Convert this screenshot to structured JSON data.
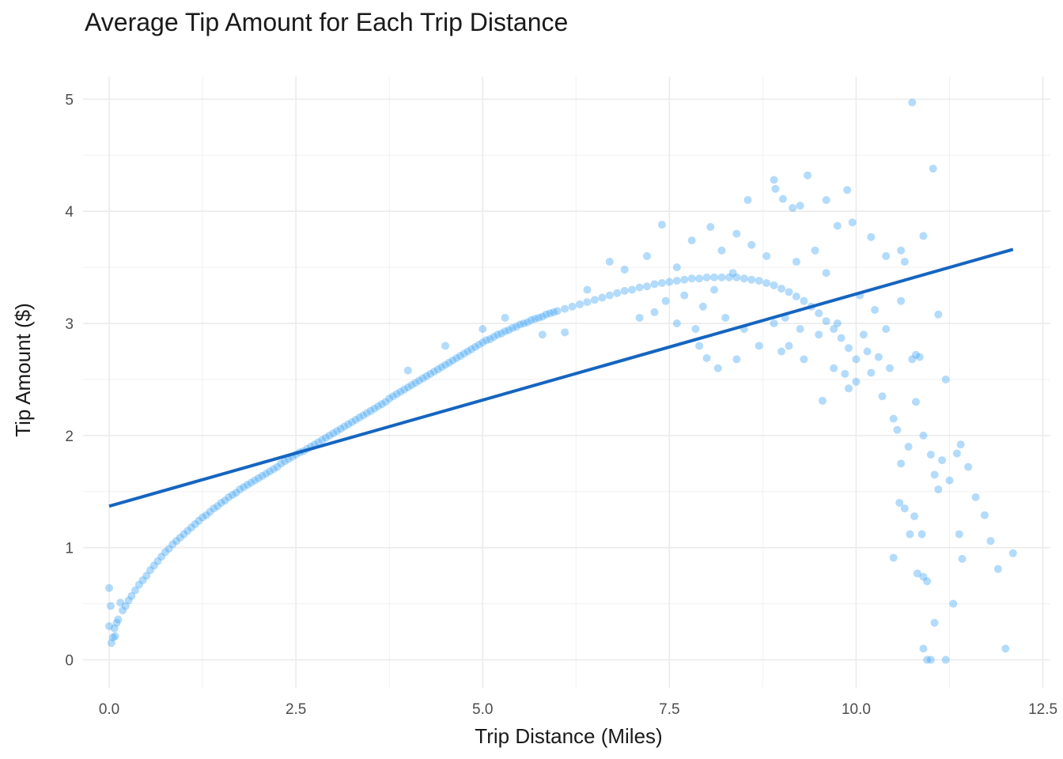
{
  "chart_data": {
    "type": "scatter",
    "title": "Average Tip Amount for Each Trip Distance",
    "xlabel": "Trip Distance (Miles)",
    "ylabel": "Tip Amount ($)",
    "xlim": [
      -0.35,
      12.6
    ],
    "ylim": [
      -0.25,
      5.2
    ],
    "x_ticks": [
      0.0,
      2.5,
      5.0,
      7.5,
      10.0,
      12.5
    ],
    "x_tick_labels": [
      "0.0",
      "2.5",
      "5.0",
      "7.5",
      "10.0",
      "12.5"
    ],
    "y_ticks": [
      0,
      1,
      2,
      3,
      4,
      5
    ],
    "y_tick_labels": [
      "0",
      "1",
      "2",
      "3",
      "4",
      "5"
    ],
    "grid": true,
    "legend": "none",
    "colors": {
      "points": "#42a5f5",
      "trend_line": "#1565c0"
    },
    "trend_line": {
      "type": "linear",
      "x": [
        0.0,
        12.1
      ],
      "y": [
        1.37,
        3.66
      ]
    },
    "series": [
      {
        "points": [
          [
            0.0,
            0.64
          ],
          [
            0.0,
            0.3
          ],
          [
            0.02,
            0.48
          ],
          [
            0.03,
            0.15
          ],
          [
            0.05,
            0.2
          ],
          [
            0.07,
            0.28
          ],
          [
            0.08,
            0.21
          ],
          [
            0.1,
            0.33
          ],
          [
            0.12,
            0.36
          ],
          [
            0.15,
            0.51
          ],
          [
            0.18,
            0.44
          ],
          [
            0.22,
            0.48
          ],
          [
            0.26,
            0.53
          ],
          [
            0.3,
            0.57
          ],
          [
            0.35,
            0.62
          ],
          [
            0.4,
            0.67
          ],
          [
            0.45,
            0.71
          ],
          [
            0.5,
            0.75
          ],
          [
            0.55,
            0.8
          ],
          [
            0.6,
            0.84
          ],
          [
            0.65,
            0.88
          ],
          [
            0.7,
            0.92
          ],
          [
            0.75,
            0.96
          ],
          [
            0.8,
            0.99
          ],
          [
            0.85,
            1.03
          ],
          [
            0.9,
            1.06
          ],
          [
            0.95,
            1.09
          ],
          [
            1.0,
            1.12
          ],
          [
            1.05,
            1.15
          ],
          [
            1.1,
            1.18
          ],
          [
            1.15,
            1.21
          ],
          [
            1.2,
            1.24
          ],
          [
            1.25,
            1.27
          ],
          [
            1.3,
            1.29
          ],
          [
            1.35,
            1.32
          ],
          [
            1.4,
            1.35
          ],
          [
            1.45,
            1.37
          ],
          [
            1.5,
            1.4
          ],
          [
            1.55,
            1.42
          ],
          [
            1.6,
            1.45
          ],
          [
            1.65,
            1.47
          ],
          [
            1.7,
            1.49
          ],
          [
            1.75,
            1.52
          ],
          [
            1.8,
            1.54
          ],
          [
            1.85,
            1.56
          ],
          [
            1.9,
            1.58
          ],
          [
            1.95,
            1.6
          ],
          [
            2.0,
            1.62
          ],
          [
            2.05,
            1.64
          ],
          [
            2.1,
            1.66
          ],
          [
            2.15,
            1.68
          ],
          [
            2.2,
            1.7
          ],
          [
            2.25,
            1.72
          ],
          [
            2.3,
            1.75
          ],
          [
            2.35,
            1.77
          ],
          [
            2.4,
            1.79
          ],
          [
            2.45,
            1.81
          ],
          [
            2.5,
            1.83
          ],
          [
            2.55,
            1.85
          ],
          [
            2.6,
            1.86
          ],
          [
            2.65,
            1.88
          ],
          [
            2.7,
            1.9
          ],
          [
            2.75,
            1.92
          ],
          [
            2.8,
            1.94
          ],
          [
            2.85,
            1.96
          ],
          [
            2.9,
            1.98
          ],
          [
            2.95,
            2.0
          ],
          [
            3.0,
            2.02
          ],
          [
            3.05,
            2.04
          ],
          [
            3.1,
            2.06
          ],
          [
            3.15,
            2.08
          ],
          [
            3.2,
            2.1
          ],
          [
            3.25,
            2.12
          ],
          [
            3.3,
            2.14
          ],
          [
            3.35,
            2.16
          ],
          [
            3.4,
            2.18
          ],
          [
            3.45,
            2.2
          ],
          [
            3.5,
            2.22
          ],
          [
            3.55,
            2.24
          ],
          [
            3.6,
            2.26
          ],
          [
            3.65,
            2.28
          ],
          [
            3.7,
            2.3
          ],
          [
            3.75,
            2.33
          ],
          [
            3.8,
            2.35
          ],
          [
            3.85,
            2.37
          ],
          [
            3.9,
            2.39
          ],
          [
            3.95,
            2.41
          ],
          [
            4.0,
            2.43
          ],
          [
            4.05,
            2.45
          ],
          [
            4.1,
            2.47
          ],
          [
            4.15,
            2.49
          ],
          [
            4.2,
            2.51
          ],
          [
            4.25,
            2.53
          ],
          [
            4.3,
            2.55
          ],
          [
            4.35,
            2.57
          ],
          [
            4.4,
            2.59
          ],
          [
            4.45,
            2.61
          ],
          [
            4.5,
            2.63
          ],
          [
            4.55,
            2.65
          ],
          [
            4.6,
            2.67
          ],
          [
            4.65,
            2.69
          ],
          [
            4.7,
            2.71
          ],
          [
            4.75,
            2.73
          ],
          [
            4.8,
            2.75
          ],
          [
            4.85,
            2.77
          ],
          [
            4.9,
            2.79
          ],
          [
            4.95,
            2.81
          ],
          [
            5.0,
            2.83
          ],
          [
            5.05,
            2.85
          ],
          [
            5.1,
            2.86
          ],
          [
            5.15,
            2.88
          ],
          [
            5.2,
            2.9
          ],
          [
            5.25,
            2.91
          ],
          [
            5.3,
            2.93
          ],
          [
            5.35,
            2.94
          ],
          [
            5.4,
            2.96
          ],
          [
            5.45,
            2.97
          ],
          [
            5.5,
            2.99
          ],
          [
            5.55,
            3.0
          ],
          [
            5.6,
            3.01
          ],
          [
            5.65,
            3.03
          ],
          [
            5.7,
            3.04
          ],
          [
            5.75,
            3.05
          ],
          [
            5.8,
            3.06
          ],
          [
            5.85,
            3.08
          ],
          [
            5.9,
            3.09
          ],
          [
            5.95,
            3.1
          ],
          [
            6.0,
            3.11
          ],
          [
            6.1,
            3.13
          ],
          [
            6.2,
            3.15
          ],
          [
            6.3,
            3.17
          ],
          [
            6.4,
            3.19
          ],
          [
            6.5,
            3.21
          ],
          [
            6.6,
            3.23
          ],
          [
            6.7,
            3.25
          ],
          [
            6.8,
            3.27
          ],
          [
            6.9,
            3.29
          ],
          [
            7.0,
            3.3
          ],
          [
            7.1,
            3.32
          ],
          [
            7.2,
            3.33
          ],
          [
            7.3,
            3.35
          ],
          [
            7.4,
            3.36
          ],
          [
            7.5,
            3.37
          ],
          [
            7.6,
            3.38
          ],
          [
            7.7,
            3.39
          ],
          [
            7.8,
            3.4
          ],
          [
            7.9,
            3.4
          ],
          [
            8.0,
            3.41
          ],
          [
            8.1,
            3.41
          ],
          [
            8.2,
            3.41
          ],
          [
            8.3,
            3.41
          ],
          [
            8.4,
            3.41
          ],
          [
            8.5,
            3.4
          ],
          [
            8.6,
            3.39
          ],
          [
            8.7,
            3.38
          ],
          [
            8.8,
            3.36
          ],
          [
            8.9,
            3.34
          ],
          [
            9.0,
            3.31
          ],
          [
            9.1,
            3.28
          ],
          [
            9.2,
            3.24
          ],
          [
            9.3,
            3.2
          ],
          [
            9.4,
            3.15
          ],
          [
            9.5,
            3.09
          ],
          [
            9.6,
            3.02
          ],
          [
            9.7,
            2.95
          ],
          [
            9.8,
            2.87
          ],
          [
            9.9,
            2.78
          ],
          [
            10.0,
            2.68
          ],
          [
            4.0,
            2.58
          ],
          [
            4.5,
            2.8
          ],
          [
            5.0,
            2.95
          ],
          [
            5.3,
            3.05
          ],
          [
            5.8,
            2.9
          ],
          [
            6.1,
            2.92
          ],
          [
            6.4,
            3.3
          ],
          [
            6.7,
            3.55
          ],
          [
            6.9,
            3.48
          ],
          [
            7.2,
            3.6
          ],
          [
            7.4,
            3.88
          ],
          [
            7.6,
            3.5
          ],
          [
            7.8,
            3.74
          ],
          [
            8.05,
            3.86
          ],
          [
            8.2,
            3.65
          ],
          [
            8.4,
            3.8
          ],
          [
            8.55,
            4.1
          ],
          [
            8.9,
            4.28
          ],
          [
            8.92,
            4.2
          ],
          [
            9.02,
            4.11
          ],
          [
            9.15,
            4.03
          ],
          [
            9.25,
            4.05
          ],
          [
            9.35,
            4.32
          ],
          [
            9.6,
            4.1
          ],
          [
            9.75,
            3.87
          ],
          [
            9.88,
            4.19
          ],
          [
            9.95,
            3.9
          ],
          [
            10.2,
            3.77
          ],
          [
            10.4,
            3.6
          ],
          [
            10.6,
            3.65
          ],
          [
            7.1,
            3.05
          ],
          [
            7.3,
            3.1
          ],
          [
            7.6,
            3.0
          ],
          [
            7.9,
            2.8
          ],
          [
            8.0,
            2.69
          ],
          [
            8.15,
            2.6
          ],
          [
            8.4,
            2.68
          ],
          [
            8.7,
            2.8
          ],
          [
            9.0,
            2.75
          ],
          [
            9.3,
            2.68
          ],
          [
            9.1,
            2.8
          ],
          [
            9.55,
            2.31
          ],
          [
            9.7,
            2.6
          ],
          [
            9.85,
            2.55
          ],
          [
            9.9,
            2.42
          ],
          [
            10.0,
            2.48
          ],
          [
            10.1,
            2.9
          ],
          [
            10.2,
            2.56
          ],
          [
            10.35,
            2.35
          ],
          [
            10.5,
            2.15
          ],
          [
            10.45,
            2.6
          ],
          [
            10.55,
            2.05
          ],
          [
            10.6,
            1.75
          ],
          [
            10.7,
            1.9
          ],
          [
            10.8,
            2.3
          ],
          [
            10.9,
            2.0
          ],
          [
            10.85,
            2.7
          ],
          [
            10.9,
            3.78
          ],
          [
            11.0,
            1.83
          ],
          [
            11.05,
            1.65
          ],
          [
            11.1,
            1.52
          ],
          [
            11.15,
            1.78
          ],
          [
            11.2,
            2.5
          ],
          [
            11.25,
            1.6
          ],
          [
            11.35,
            1.84
          ],
          [
            11.4,
            1.92
          ],
          [
            11.5,
            1.72
          ],
          [
            11.6,
            1.45
          ],
          [
            11.72,
            1.29
          ],
          [
            11.8,
            1.06
          ],
          [
            11.9,
            0.81
          ],
          [
            12.0,
            0.1
          ],
          [
            12.1,
            0.95
          ],
          [
            10.5,
            0.91
          ],
          [
            10.58,
            1.4
          ],
          [
            10.65,
            1.35
          ],
          [
            10.72,
            1.12
          ],
          [
            10.78,
            1.28
          ],
          [
            10.82,
            0.77
          ],
          [
            10.88,
            1.12
          ],
          [
            10.9,
            0.74
          ],
          [
            10.95,
            0.7
          ],
          [
            10.9,
            0.1
          ],
          [
            10.95,
            0.0
          ],
          [
            11.0,
            0.0
          ],
          [
            11.2,
            0.0
          ],
          [
            11.05,
            0.33
          ],
          [
            11.3,
            0.5
          ],
          [
            11.38,
            1.12
          ],
          [
            11.42,
            0.9
          ],
          [
            10.75,
            4.97
          ],
          [
            11.03,
            4.38
          ],
          [
            10.65,
            3.55
          ],
          [
            11.1,
            3.08
          ],
          [
            10.8,
            2.72
          ],
          [
            10.75,
            2.68
          ],
          [
            10.4,
            2.95
          ],
          [
            10.6,
            3.2
          ],
          [
            10.25,
            3.12
          ],
          [
            10.05,
            3.25
          ],
          [
            9.45,
            3.65
          ],
          [
            9.6,
            3.45
          ],
          [
            9.2,
            3.55
          ],
          [
            8.8,
            3.6
          ],
          [
            8.6,
            3.7
          ],
          [
            8.35,
            3.45
          ],
          [
            8.1,
            3.3
          ],
          [
            7.95,
            3.15
          ],
          [
            7.7,
            3.25
          ],
          [
            7.45,
            3.2
          ],
          [
            9.05,
            3.05
          ],
          [
            9.25,
            2.95
          ],
          [
            9.5,
            2.9
          ],
          [
            9.75,
            3.0
          ],
          [
            10.15,
            2.75
          ],
          [
            10.3,
            2.7
          ],
          [
            8.9,
            3.0
          ],
          [
            8.5,
            2.95
          ],
          [
            8.25,
            3.05
          ],
          [
            7.85,
            2.95
          ]
        ]
      }
    ]
  }
}
